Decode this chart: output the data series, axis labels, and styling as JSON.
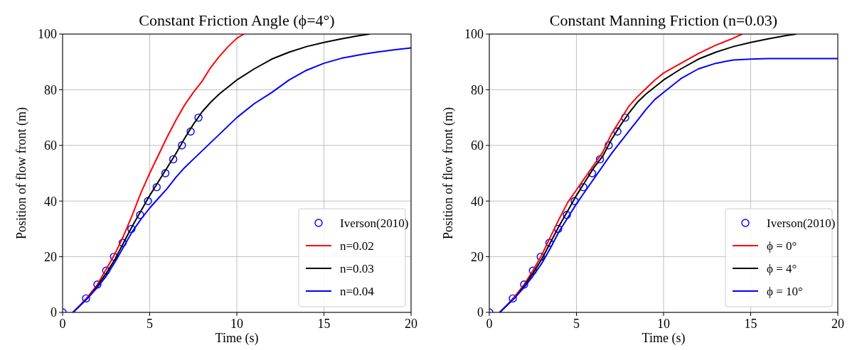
{
  "chart_data": [
    {
      "type": "line",
      "title": "Constant Friction Angle (ϕ=4°)",
      "xlabel": "Time (s)",
      "ylabel": "Position of flow front (m)",
      "xlim": [
        0,
        20
      ],
      "xticks": [
        0,
        5,
        10,
        15,
        20
      ],
      "ylim": [
        0,
        100
      ],
      "yticks": [
        0,
        20,
        40,
        60,
        80,
        100
      ],
      "grid": true,
      "legend": "bottom right",
      "series": [
        {
          "name": "Iverson(2010)",
          "type": "scatter",
          "marker": "circle",
          "color": "#0000ff",
          "x": [
            0,
            1.35,
            2.0,
            2.5,
            2.95,
            3.45,
            3.95,
            4.45,
            4.9,
            5.4,
            5.9,
            6.35,
            6.85,
            7.35,
            7.8
          ],
          "values": [
            0,
            5,
            10,
            15,
            20,
            25,
            30,
            35,
            40,
            45,
            50,
            55,
            60,
            65,
            70
          ]
        },
        {
          "name": "n=0.02",
          "color": "#ff0000",
          "x": [
            0.6,
            1,
            1.5,
            2,
            2.5,
            3,
            3.5,
            4,
            4.5,
            5,
            5.5,
            6,
            6.5,
            7,
            7.5,
            8,
            8.5,
            9,
            9.5,
            10,
            10.4
          ],
          "values": [
            0,
            2.5,
            6,
            10,
            15.5,
            21,
            27.5,
            35,
            43,
            50,
            56.5,
            63,
            69,
            74.5,
            79,
            83,
            88,
            92,
            95.5,
            98.5,
            100
          ]
        },
        {
          "name": "n=0.03",
          "color": "#000000",
          "x": [
            0.6,
            1.5,
            2,
            2.5,
            3,
            3.5,
            4,
            4.5,
            5,
            5.5,
            6,
            6.5,
            7,
            7.5,
            8,
            8.5,
            9,
            9.5,
            10,
            11,
            12,
            13,
            14,
            15,
            16,
            17,
            17.6
          ],
          "values": [
            0,
            5.5,
            9.5,
            14,
            19,
            25,
            31,
            36.5,
            42,
            47,
            52,
            57,
            62.5,
            67.5,
            72,
            75.5,
            78.5,
            81,
            83.5,
            87.5,
            91,
            93.5,
            95.5,
            97,
            98.3,
            99.4,
            100
          ]
        },
        {
          "name": "n=0.04",
          "color": "#0000ff",
          "x": [
            0.6,
            1,
            1.5,
            2,
            2.5,
            3,
            3.5,
            4,
            4.5,
            5,
            5.5,
            6,
            6.5,
            7,
            7.5,
            8,
            9,
            10,
            11,
            12,
            13,
            14,
            15,
            16,
            17,
            18,
            19,
            20
          ],
          "values": [
            0,
            2.5,
            5.5,
            9,
            13,
            18,
            23.5,
            29,
            33.5,
            37.5,
            41,
            44.5,
            48.5,
            52,
            55,
            58,
            64,
            70,
            75,
            79,
            83.5,
            87,
            89.5,
            91.3,
            92.5,
            93.5,
            94.3,
            95
          ]
        }
      ]
    },
    {
      "type": "line",
      "title": "Constant Manning Friction (n=0.03)",
      "xlabel": "Time (s)",
      "ylabel": "Position of flow front (m)",
      "xlim": [
        0,
        20
      ],
      "xticks": [
        0,
        5,
        10,
        15,
        20
      ],
      "ylim": [
        0,
        100
      ],
      "yticks": [
        0,
        20,
        40,
        60,
        80,
        100
      ],
      "grid": true,
      "legend": "bottom right",
      "series": [
        {
          "name": "Iverson(2010)",
          "type": "scatter",
          "marker": "circle",
          "color": "#0000ff",
          "x": [
            0,
            1.35,
            2.0,
            2.5,
            2.95,
            3.45,
            3.95,
            4.45,
            4.9,
            5.4,
            5.9,
            6.35,
            6.85,
            7.35,
            7.8
          ],
          "values": [
            0,
            5,
            10,
            15,
            20,
            25,
            30,
            35,
            40,
            45,
            50,
            55,
            60,
            65,
            70
          ]
        },
        {
          "name": "ϕ = 0°",
          "color": "#ff0000",
          "x": [
            0.6,
            1,
            1.5,
            2,
            2.5,
            3,
            3.5,
            4,
            4.5,
            5,
            5.5,
            6,
            6.5,
            7,
            7.5,
            8,
            8.5,
            9,
            9.5,
            10,
            11,
            12,
            13,
            14,
            14.5
          ],
          "values": [
            0,
            2.5,
            6,
            10,
            15,
            20.5,
            27,
            33.5,
            39.5,
            44,
            48.5,
            53,
            57.5,
            64,
            69,
            74,
            77.5,
            80.5,
            83.5,
            86,
            89.5,
            93,
            96,
            98.5,
            100
          ]
        },
        {
          "name": "ϕ = 4°",
          "color": "#000000",
          "x": [
            0.6,
            1.5,
            2,
            2.5,
            3,
            3.5,
            4,
            4.5,
            5,
            5.5,
            6,
            6.5,
            7,
            7.5,
            8,
            8.5,
            9,
            9.5,
            10,
            11,
            12,
            13,
            14,
            15,
            16,
            17,
            17.6
          ],
          "values": [
            0,
            5.5,
            9.5,
            14,
            19,
            25,
            31,
            36.5,
            42,
            47,
            52,
            56,
            62,
            67,
            71.5,
            75.5,
            78.5,
            81,
            83.5,
            87.5,
            91,
            93.5,
            95.5,
            97,
            98.3,
            99.4,
            100
          ]
        },
        {
          "name": "ϕ = 10°",
          "color": "#0000ff",
          "x": [
            0.6,
            1,
            1.5,
            2,
            2.5,
            3,
            3.5,
            4,
            4.5,
            5,
            5.5,
            6,
            6.5,
            7,
            7.5,
            8,
            8.5,
            9,
            9.5,
            10,
            11,
            12,
            13,
            14,
            15,
            16,
            20
          ],
          "values": [
            0,
            2.5,
            5.5,
            9,
            13,
            17.5,
            23,
            29,
            34,
            39,
            43.5,
            48,
            52.5,
            57,
            61,
            65,
            69,
            73,
            76.5,
            79,
            84,
            87.5,
            89.5,
            90.7,
            91,
            91.2,
            91.2
          ]
        }
      ]
    }
  ]
}
